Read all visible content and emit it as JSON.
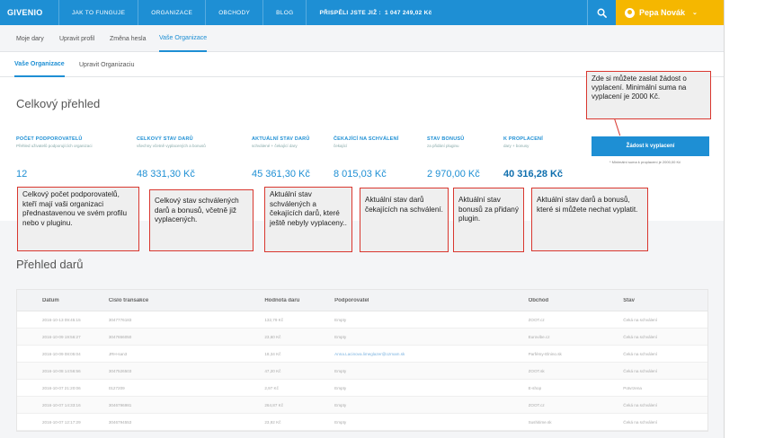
{
  "nav": {
    "logo": "GIVENIO",
    "links": [
      "JAK TO FUNGUJE",
      "ORGANIZACE",
      "OBCHODY",
      "BLOG"
    ],
    "stat_label": "PŘISPĚLI JSTE JIŽ :",
    "stat_value": "1 047 249,02 Kč",
    "user_name": "Pepa Novák",
    "colors": {
      "primary": "#1e8fd4",
      "user": "#f5b700"
    }
  },
  "tabs": {
    "primary": [
      "Moje dary",
      "Upravit profil",
      "Změna hesla",
      "Vaše Organizace"
    ],
    "secondary": [
      "Vaše Organizace",
      "Upravit Organizaciu"
    ]
  },
  "overview": {
    "title": "Celkový přehled",
    "stats": [
      {
        "title": "POČET PODPOROVATELŮ",
        "sub": "Přehled uživatelů podporujících organizaci",
        "value": "12"
      },
      {
        "title": "CELKOVÝ STAV DARŮ",
        "sub": "všechny včetně vyplacených a bonusů",
        "value": "48 331,30 Kč"
      },
      {
        "title": "AKTUÁLNÍ STAV DARŮ",
        "sub": "schválené + čekající dary",
        "value": "45 361,30 Kč"
      },
      {
        "title": "ČEKAJÍCÍ NA SCHVÁLENÍ",
        "sub": "čekající",
        "value": "8 015,03 Kč"
      },
      {
        "title": "STAV BONUSŮ",
        "sub": "za přidání pluginu",
        "value": "2 970,00 Kč"
      },
      {
        "title": "K PROPLACENÍ",
        "sub": "dary + bonusy",
        "value": "40 316,28 Kč"
      }
    ],
    "payout_button": "Žádost k vyplacení",
    "payout_note": "* Minimální suma k proplacení je 2000,00 Kč"
  },
  "callouts": {
    "payout": "Zde si můžete zaslat žádost o vyplacení. Minimální suma na vyplacení je 2000 Kč.",
    "supporters": "Celkový počet podporovatelů, kteří mají vaši organizaci přednastavenou ve svém profilu nebo v pluginu.",
    "total": "Celkový stav schválených darů a bonusů, včetně již vyplacených.",
    "current": "Aktuální stav schválených a čekajících darů, které ještě nebyly vyplaceny..",
    "pending": "Aktuální stav darů čekajících na schválení.",
    "bonus": "Aktuální stav bonusů za přidaný plugin.",
    "payable": "Aktuální stav darů a bonusů, které si můžete nechat vyplatit."
  },
  "donations": {
    "title": "Přehled darů",
    "columns": [
      "Datum",
      "Číslo transakce",
      "Hodnota daru",
      "Podporovatel",
      "Obchod",
      "Stav"
    ],
    "rows": [
      [
        "2016-10-13 09:45:15",
        "3047776183",
        "132,79 Kč",
        "Empty",
        "ZOOT.cz",
        "Čeká na schválení"
      ],
      [
        "2016-10-09 19:56:27",
        "3047656050",
        "23,60 Kč",
        "Empty",
        "Eurovibe.cz",
        "Čeká na schválení"
      ],
      [
        "2016-10-09 08:05:04",
        "JRH-san3",
        "18,34 Kč",
        "Anna.Lacinova.limeglazer@ozmam.sk",
        "Parfémy-Elnino.sk",
        "Čeká na schválení"
      ],
      [
        "2016-10-08 14:56:56",
        "3047526503",
        "47,20 Kč",
        "Empty",
        "ZOOT.sk",
        "Čeká na schválení"
      ],
      [
        "2016-10-07 21:20:06",
        "0127209",
        "2,97 Kč",
        "Empty",
        "E-shop",
        "Potvrzena"
      ],
      [
        "2016-10-07 14:33:16",
        "3046796981",
        "264,87 Kč",
        "Empty",
        "ZOOT.cz",
        "Čeká na schválení"
      ],
      [
        "2016-10-07 12:17:29",
        "3046794553",
        "23,92 Kč",
        "Empty",
        "Sushitime.sk",
        "Čeká na schválení"
      ]
    ]
  }
}
